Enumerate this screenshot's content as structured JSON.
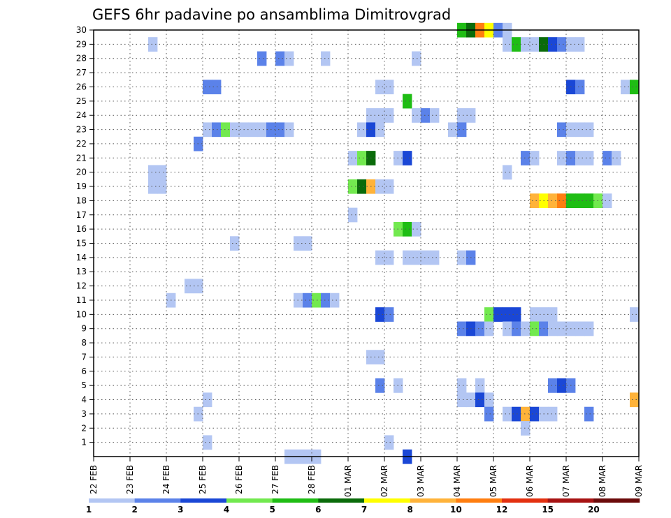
{
  "chart_data": {
    "type": "heatmap",
    "title": "GEFS 6hr padavine po ansamblima Dimitrovgrad",
    "xlabel": "",
    "ylabel": "",
    "x_ticks": [
      "22 FEB",
      "23 FEB",
      "24 FEB",
      "25 FEB",
      "26 FEB",
      "27 FEB",
      "28 FEB",
      "01 MAR",
      "02 MAR",
      "03 MAR",
      "04 MAR",
      "05 MAR",
      "06 MAR",
      "07 MAR",
      "08 MAR",
      "09 MAR"
    ],
    "y_ticks": [
      "1",
      "2",
      "3",
      "4",
      "5",
      "6",
      "7",
      "8",
      "9",
      "10",
      "11",
      "12",
      "13",
      "14",
      "15",
      "16",
      "17",
      "18",
      "19",
      "20",
      "21",
      "22",
      "23",
      "24",
      "25",
      "26",
      "27",
      "28",
      "29",
      "30"
    ],
    "x_range_days": [
      0,
      15
    ],
    "y_range": [
      0,
      30
    ],
    "grid": true,
    "colorbar": {
      "labels": [
        "1",
        "2",
        "3",
        "4",
        "5",
        "6",
        "7",
        "8",
        "10",
        "12",
        "15",
        "20"
      ],
      "colors": [
        "#b3c6f3",
        "#5b82e9",
        "#1a47d6",
        "#72e94f",
        "#1fbd14",
        "#0a6b0a",
        "#ffff00",
        "#ffb33a",
        "#ff7e10",
        "#e33010",
        "#a71313",
        "#6b0a0a"
      ]
    },
    "cells": [
      [
        1.5,
        29,
        0
      ],
      [
        4.5,
        28,
        1
      ],
      [
        5.0,
        28,
        1
      ],
      [
        5.25,
        28,
        0
      ],
      [
        6.25,
        28,
        0
      ],
      [
        8.75,
        28,
        0
      ],
      [
        10.0,
        30,
        4
      ],
      [
        10.25,
        30,
        5
      ],
      [
        10.5,
        30,
        8
      ],
      [
        10.75,
        30,
        6
      ],
      [
        11.0,
        30,
        1
      ],
      [
        11.25,
        30,
        0
      ],
      [
        11.25,
        29,
        0
      ],
      [
        11.5,
        29,
        4
      ],
      [
        11.75,
        29,
        0
      ],
      [
        12.0,
        29,
        0
      ],
      [
        12.25,
        29,
        5
      ],
      [
        12.5,
        29,
        2
      ],
      [
        12.75,
        29,
        1
      ],
      [
        13.0,
        29,
        0
      ],
      [
        13.25,
        29,
        0
      ],
      [
        3.0,
        26,
        1
      ],
      [
        3.25,
        26,
        1
      ],
      [
        7.75,
        26,
        0
      ],
      [
        8.0,
        26,
        0
      ],
      [
        13.0,
        26,
        2
      ],
      [
        13.25,
        26,
        1
      ],
      [
        14.5,
        26,
        0
      ],
      [
        14.75,
        26,
        4
      ],
      [
        8.5,
        25,
        4
      ],
      [
        10.0,
        24,
        0
      ],
      [
        10.25,
        24,
        0
      ],
      [
        7.5,
        24,
        0
      ],
      [
        7.75,
        24,
        0
      ],
      [
        8.0,
        24,
        0
      ],
      [
        8.75,
        24,
        0
      ],
      [
        9.0,
        24,
        1
      ],
      [
        9.25,
        24,
        0
      ],
      [
        3.0,
        23,
        0
      ],
      [
        3.25,
        23,
        1
      ],
      [
        3.5,
        23,
        3
      ],
      [
        3.75,
        23,
        0
      ],
      [
        4.0,
        23,
        0
      ],
      [
        4.25,
        23,
        0
      ],
      [
        4.5,
        23,
        0
      ],
      [
        4.75,
        23,
        1
      ],
      [
        5.0,
        23,
        1
      ],
      [
        5.25,
        23,
        0
      ],
      [
        7.25,
        23,
        0
      ],
      [
        7.5,
        23,
        2
      ],
      [
        7.75,
        23,
        0
      ],
      [
        9.75,
        23,
        0
      ],
      [
        10.0,
        23,
        1
      ],
      [
        12.75,
        23,
        1
      ],
      [
        13.0,
        23,
        0
      ],
      [
        13.25,
        23,
        0
      ],
      [
        13.5,
        23,
        0
      ],
      [
        2.75,
        22,
        1
      ],
      [
        7.0,
        21,
        0
      ],
      [
        7.25,
        21,
        3
      ],
      [
        7.5,
        21,
        5
      ],
      [
        8.25,
        21,
        0
      ],
      [
        8.5,
        21,
        2
      ],
      [
        11.75,
        21,
        1
      ],
      [
        12.0,
        21,
        0
      ],
      [
        12.75,
        21,
        0
      ],
      [
        13.0,
        21,
        1
      ],
      [
        13.25,
        21,
        0
      ],
      [
        13.5,
        21,
        0
      ],
      [
        14.0,
        21,
        1
      ],
      [
        14.25,
        21,
        0
      ],
      [
        1.5,
        20,
        0
      ],
      [
        1.75,
        20,
        0
      ],
      [
        11.25,
        20,
        0
      ],
      [
        1.5,
        19,
        0
      ],
      [
        1.75,
        19,
        0
      ],
      [
        7.0,
        19,
        3
      ],
      [
        7.25,
        19,
        5
      ],
      [
        7.5,
        19,
        7
      ],
      [
        7.75,
        19,
        0
      ],
      [
        8.0,
        19,
        0
      ],
      [
        12.0,
        18,
        7
      ],
      [
        12.25,
        18,
        6
      ],
      [
        12.5,
        18,
        7
      ],
      [
        12.75,
        18,
        8
      ],
      [
        13.0,
        18,
        4
      ],
      [
        13.25,
        18,
        4
      ],
      [
        13.5,
        18,
        4
      ],
      [
        13.75,
        18,
        3
      ],
      [
        14.0,
        18,
        0
      ],
      [
        7.0,
        17,
        0
      ],
      [
        8.25,
        16,
        3
      ],
      [
        8.5,
        16,
        4
      ],
      [
        8.75,
        16,
        0
      ],
      [
        3.75,
        15,
        0
      ],
      [
        5.5,
        15,
        0
      ],
      [
        5.75,
        15,
        0
      ],
      [
        7.75,
        14,
        0
      ],
      [
        8.0,
        14,
        0
      ],
      [
        8.5,
        14,
        0
      ],
      [
        8.75,
        14,
        0
      ],
      [
        9.0,
        14,
        0
      ],
      [
        9.25,
        14,
        0
      ],
      [
        10.0,
        14,
        0
      ],
      [
        10.25,
        14,
        1
      ],
      [
        2.5,
        12,
        0
      ],
      [
        2.75,
        12,
        0
      ],
      [
        2.0,
        11,
        0
      ],
      [
        5.5,
        11,
        0
      ],
      [
        5.75,
        11,
        1
      ],
      [
        6.0,
        11,
        3
      ],
      [
        6.25,
        11,
        1
      ],
      [
        6.5,
        11,
        0
      ],
      [
        7.75,
        10,
        2
      ],
      [
        8.0,
        10,
        1
      ],
      [
        10.75,
        10,
        3
      ],
      [
        11.0,
        10,
        2
      ],
      [
        11.25,
        10,
        2
      ],
      [
        11.5,
        10,
        2
      ],
      [
        12.0,
        10,
        0
      ],
      [
        12.25,
        10,
        0
      ],
      [
        12.5,
        10,
        0
      ],
      [
        14.75,
        10,
        0
      ],
      [
        10.0,
        9,
        1
      ],
      [
        10.25,
        9,
        2
      ],
      [
        10.5,
        9,
        1
      ],
      [
        10.75,
        9,
        0
      ],
      [
        11.25,
        9,
        0
      ],
      [
        11.5,
        9,
        1
      ],
      [
        11.75,
        9,
        0
      ],
      [
        12.0,
        9,
        3
      ],
      [
        12.25,
        9,
        1
      ],
      [
        12.5,
        9,
        0
      ],
      [
        12.75,
        9,
        0
      ],
      [
        13.0,
        9,
        0
      ],
      [
        13.25,
        9,
        0
      ],
      [
        13.5,
        9,
        0
      ],
      [
        7.5,
        7,
        0
      ],
      [
        7.75,
        7,
        0
      ],
      [
        7.75,
        5,
        1
      ],
      [
        8.25,
        5,
        0
      ],
      [
        10.0,
        5,
        0
      ],
      [
        10.5,
        5,
        0
      ],
      [
        12.5,
        5,
        1
      ],
      [
        12.75,
        5,
        2
      ],
      [
        13.0,
        5,
        1
      ],
      [
        3.0,
        4,
        0
      ],
      [
        10.0,
        4,
        0
      ],
      [
        10.25,
        4,
        0
      ],
      [
        10.5,
        4,
        2
      ],
      [
        10.75,
        4,
        0
      ],
      [
        14.75,
        4,
        7
      ],
      [
        2.75,
        3,
        0
      ],
      [
        10.75,
        3,
        1
      ],
      [
        11.25,
        3,
        0
      ],
      [
        11.5,
        3,
        2
      ],
      [
        11.75,
        3,
        7
      ],
      [
        12.0,
        3,
        2
      ],
      [
        12.25,
        3,
        0
      ],
      [
        12.5,
        3,
        0
      ],
      [
        13.5,
        3,
        1
      ],
      [
        11.75,
        2,
        0
      ],
      [
        3.0,
        1,
        0
      ],
      [
        8.0,
        1,
        0
      ],
      [
        5.25,
        0,
        0
      ],
      [
        5.5,
        0,
        0
      ],
      [
        5.75,
        0,
        0
      ],
      [
        6.0,
        0,
        0
      ],
      [
        8.5,
        0,
        2
      ]
    ]
  }
}
